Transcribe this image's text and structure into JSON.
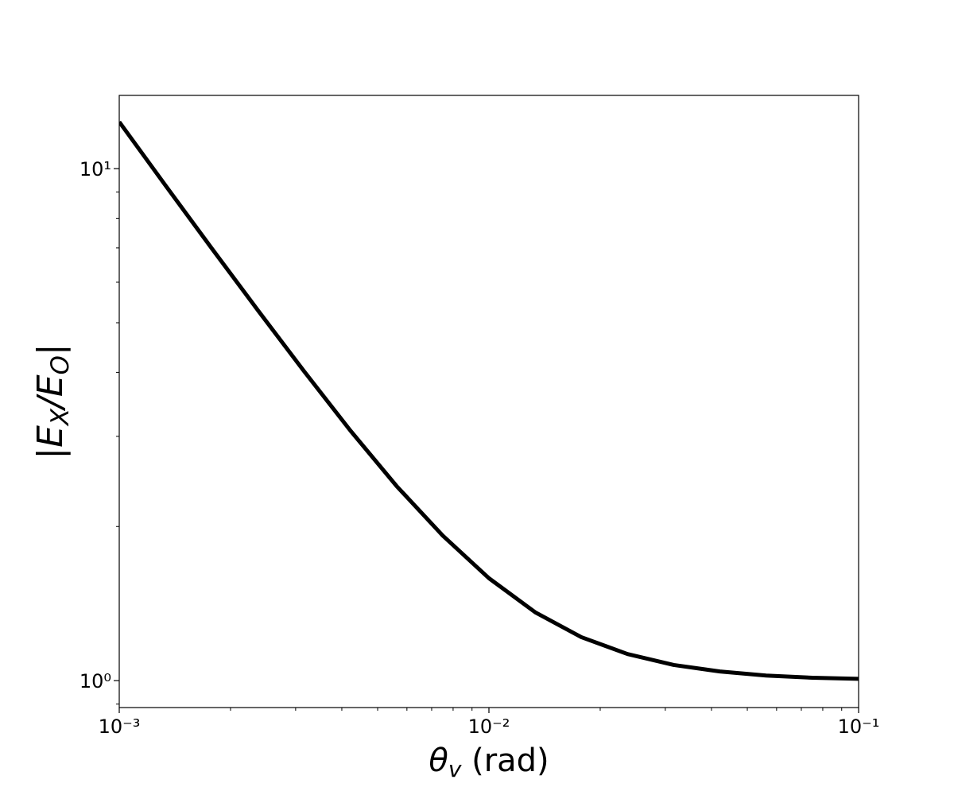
{
  "chart_data": {
    "type": "line",
    "xlabel": "θ_v (rad)",
    "ylabel": "|E_X/E_O|",
    "x": [
      0.001,
      0.001334,
      0.001778,
      0.002371,
      0.003162,
      0.004217,
      0.005623,
      0.007499,
      0.01,
      0.01334,
      0.01778,
      0.02371,
      0.03162,
      0.04217,
      0.05623,
      0.07499,
      0.1
    ],
    "series": [
      {
        "color": "#000000",
        "values": [
          12.34,
          9.27,
          6.99,
          5.29,
          4.02,
          3.08,
          2.4,
          1.92,
          1.585,
          1.36,
          1.216,
          1.127,
          1.073,
          1.042,
          1.023,
          1.013,
          1.008
        ]
      }
    ],
    "xscale": "log",
    "yscale": "log",
    "xlim": [
      0.001,
      0.1
    ],
    "ylim": [
      0.886,
      13.9
    ],
    "xticks": [
      {
        "value": 0.001,
        "label": "10⁻³"
      },
      {
        "value": 0.01,
        "label": "10⁻²"
      },
      {
        "value": 0.1,
        "label": "10⁻¹"
      }
    ],
    "yticks": [
      {
        "value": 1,
        "label": "10⁰"
      },
      {
        "value": 10,
        "label": "10¹"
      }
    ],
    "grid": false
  }
}
